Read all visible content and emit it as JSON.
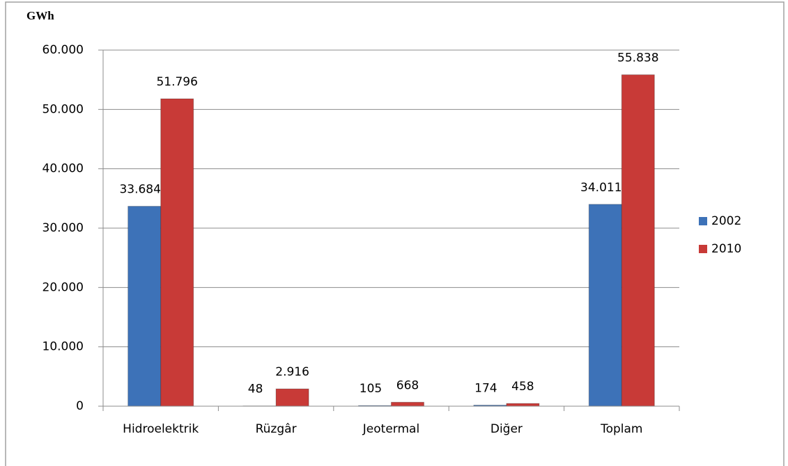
{
  "chart_data": {
    "type": "bar",
    "title": "GWh",
    "categories": [
      "Hidroelektrik",
      "Rüzgâr",
      "Jeotermal",
      "Diğer",
      "Toplam"
    ],
    "series": [
      {
        "name": "2002",
        "color": "#3d72b8",
        "values": [
          33684,
          48,
          105,
          174,
          34011
        ],
        "value_labels": [
          "33.684",
          "48",
          "105",
          "174",
          "34.011"
        ]
      },
      {
        "name": "2010",
        "color": "#c83a37",
        "values": [
          51796,
          2916,
          668,
          458,
          55838
        ],
        "value_labels": [
          "51.796",
          "2.916",
          "668",
          "458",
          "55.838"
        ]
      }
    ],
    "ylim": [
      0,
      60000
    ],
    "yticks": [
      0,
      {
        "value": 10000,
        "label": "10.000"
      },
      {
        "value": 20000,
        "label": "20.000"
      },
      {
        "value": 30000,
        "label": "30.000"
      },
      {
        "value": 40000,
        "label": "40.000"
      },
      {
        "value": 50000,
        "label": "50.000"
      },
      {
        "value": 60000,
        "label": "60.000"
      }
    ],
    "grid": true,
    "legend": "right"
  }
}
